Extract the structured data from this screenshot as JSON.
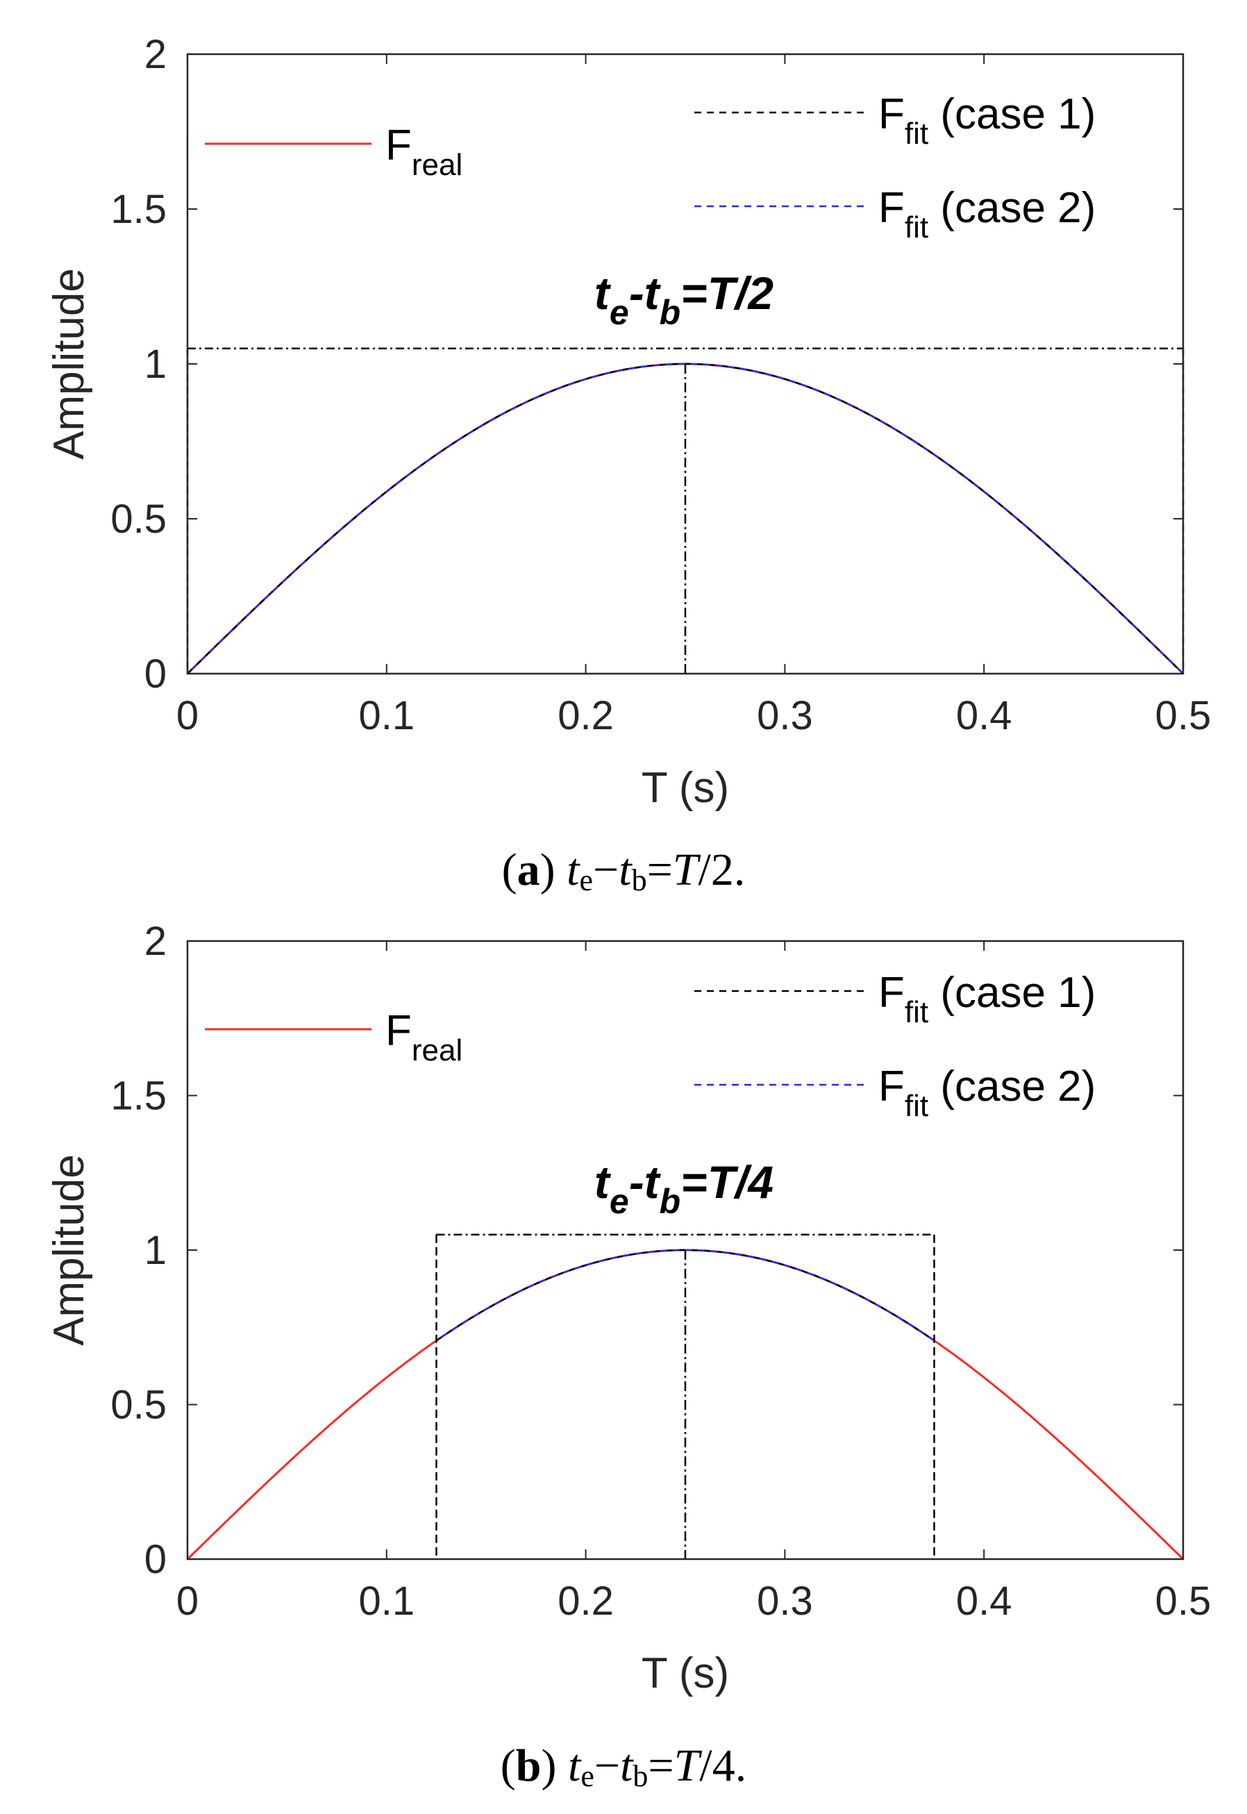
{
  "chart_data": [
    {
      "type": "line",
      "caption": {
        "letter": "a",
        "te": "t",
        "te_sub": "e",
        "minus": "−",
        "tb": "t",
        "tb_sub": "b",
        "eq": "=",
        "rhs_var": "T",
        "rhs_rest": "/2."
      },
      "xlabel": "T (s)",
      "ylabel": "Amplitude",
      "xlim": [
        0,
        0.5
      ],
      "ylim": [
        0,
        2
      ],
      "xticks": [
        "0",
        "0.1",
        "0.2",
        "0.3",
        "0.4",
        "0.5"
      ],
      "yticks": [
        "0",
        "0.5",
        "1",
        "1.5",
        "2"
      ],
      "x_range_real": [
        0,
        0.5
      ],
      "fit_range": [
        0,
        0.5
      ],
      "peak": [
        0.25,
        1.0
      ],
      "bracket_level": 1.05,
      "annotation": {
        "t1": "t",
        "s1": "e",
        "mid": "-t",
        "s2": "b",
        "rhs": "=T/2"
      },
      "legend": {
        "real": {
          "base": "F",
          "sub": "real"
        },
        "fit1": {
          "base": "F",
          "sub": "fit",
          "suffix": " (case 1)"
        },
        "fit2": {
          "base": "F",
          "sub": "fit",
          "suffix": " (case 2)"
        }
      },
      "series": [
        {
          "name": "F_real",
          "function": "sin(2*pi*T)",
          "x_range": [
            0,
            0.5
          ],
          "color": "#ff2a2a"
        },
        {
          "name": "F_fit (case 1)",
          "function": "sin(2*pi*T)",
          "x_range": [
            0,
            0.5
          ],
          "color": "#000000"
        },
        {
          "name": "F_fit (case 2)",
          "function": "sin(2*pi*T)",
          "x_range": [
            0,
            0.5
          ],
          "color": "#1f2aff"
        }
      ]
    },
    {
      "type": "line",
      "caption": {
        "letter": "b",
        "te": "t",
        "te_sub": "e",
        "minus": "−",
        "tb": "t",
        "tb_sub": "b",
        "eq": "=",
        "rhs_var": "T",
        "rhs_rest": "/4."
      },
      "xlabel": "T (s)",
      "ylabel": "Amplitude",
      "xlim": [
        0,
        0.5
      ],
      "ylim": [
        0,
        2
      ],
      "xticks": [
        "0",
        "0.1",
        "0.2",
        "0.3",
        "0.4",
        "0.5"
      ],
      "yticks": [
        "0",
        "0.5",
        "1",
        "1.5",
        "2"
      ],
      "x_range_real": [
        0,
        0.5
      ],
      "fit_range": [
        0.125,
        0.375
      ],
      "peak": [
        0.25,
        1.0
      ],
      "bracket_level": 1.05,
      "annotation": {
        "t1": "t",
        "s1": "e",
        "mid": "-t",
        "s2": "b",
        "rhs": "=T/4"
      },
      "legend": {
        "real": {
          "base": "F",
          "sub": "real"
        },
        "fit1": {
          "base": "F",
          "sub": "fit",
          "suffix": " (case 1)"
        },
        "fit2": {
          "base": "F",
          "sub": "fit",
          "suffix": " (case 2)"
        }
      },
      "series": [
        {
          "name": "F_real",
          "function": "sin(2*pi*T)",
          "x_range": [
            0,
            0.5
          ],
          "color": "#ff2a2a"
        },
        {
          "name": "F_fit (case 1)",
          "function": "sin(2*pi*T)",
          "x_range": [
            0.125,
            0.375
          ],
          "color": "#000000"
        },
        {
          "name": "F_fit (case 2)",
          "function": "sin(2*pi*T)",
          "x_range": [
            0.125,
            0.375
          ],
          "color": "#1f2aff"
        }
      ]
    }
  ]
}
